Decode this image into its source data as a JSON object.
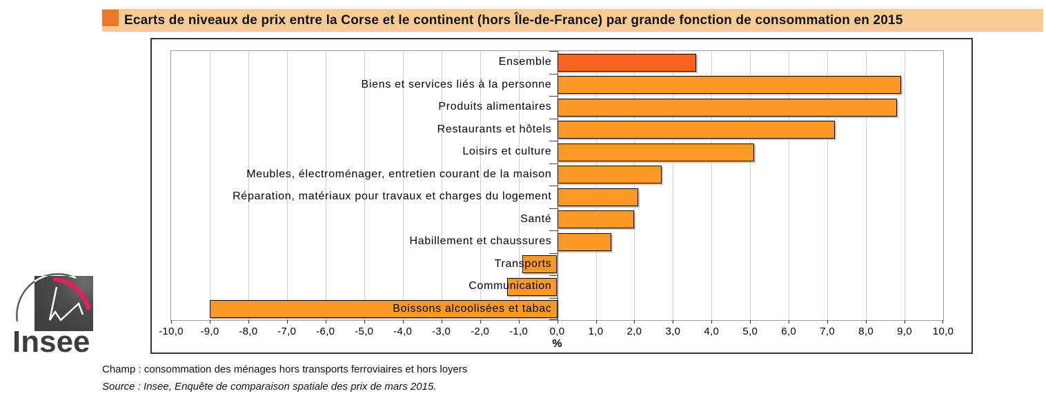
{
  "header": {
    "title": "Ecarts de niveaux de prix entre la Corse et le continent (hors Île-de-France) par grande fonction de consommation en 2015"
  },
  "chart_data": {
    "type": "bar",
    "orientation": "horizontal",
    "title": "Ecarts de niveaux de prix entre la Corse et le continent (hors Île-de-France) par grande fonction de consommation en 2015",
    "categories": [
      "Ensemble",
      "Biens et services liés à la personne",
      "Produits alimentaires",
      "Restaurants et hôtels",
      "Loisirs et culture",
      "Meubles, électroménager, entretien courant de la maison",
      "Réparation, matériaux pour travaux et charges du logement",
      "Santé",
      "Habillement et chaussures",
      "Transports",
      "Communication",
      "Boissons alcoolisées et tabac"
    ],
    "values": [
      3.6,
      8.9,
      8.8,
      7.2,
      5.1,
      2.7,
      2.1,
      2.0,
      1.4,
      -0.9,
      -1.3,
      -9.0
    ],
    "highlight_category": "Ensemble",
    "xlabel": "%",
    "xlim": [
      -10,
      10
    ],
    "tick_step": 1,
    "tick_labels": [
      "-10,0",
      "-9,0",
      "-8,0",
      "-7,0",
      "-6,0",
      "-5,0",
      "-4,0",
      "-3,0",
      "-2,0",
      "-1,0",
      "0,0",
      "1,0",
      "2,0",
      "3,0",
      "4,0",
      "5,0",
      "6,0",
      "7,0",
      "8,0",
      "9,0",
      "10,0"
    ],
    "grid": true,
    "legend": null,
    "colors": {
      "bar": "#FA9828",
      "ensemble_bar": "#FA6320",
      "bar_border": "#000000",
      "gridline": "#D2D2D2",
      "zero_axis": "#4A4A4A"
    }
  },
  "title_bar": {
    "background": "#F8CB94",
    "square_color": "#E87A2C"
  },
  "footer": {
    "champ": "Champ : consommation des ménages hors transports ferroviaires et hors loyers",
    "source": "Source : Insee, Enquête de comparaison spatiale des prix de mars 2015."
  },
  "logo": {
    "text": "Insee",
    "accent_color": "#EC1C5A"
  }
}
